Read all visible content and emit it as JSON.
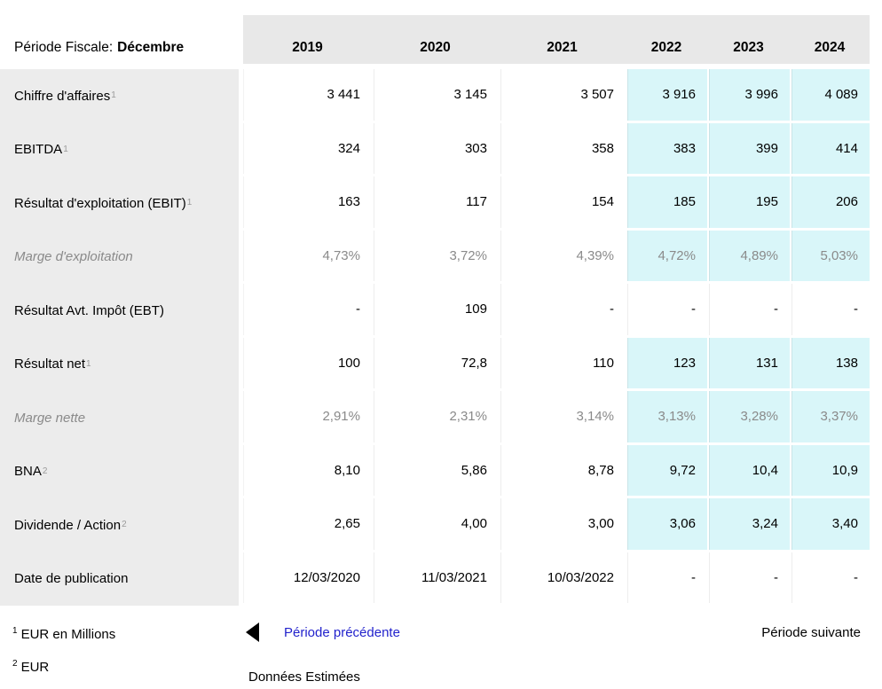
{
  "table": {
    "header": {
      "label_prefix": "Période Fiscale:",
      "label_value": "Décembre",
      "years": [
        "2019",
        "2020",
        "2021",
        "2022",
        "2023",
        "2024"
      ]
    },
    "rows": [
      {
        "label": "Chiffre d'affaires",
        "sup": "1",
        "muted": false,
        "estimated": true,
        "values": [
          "3 441",
          "3 145",
          "3 507",
          "3 916",
          "3 996",
          "4 089"
        ]
      },
      {
        "label": "EBITDA",
        "sup": "1",
        "muted": false,
        "estimated": true,
        "values": [
          "324",
          "303",
          "358",
          "383",
          "399",
          "414"
        ]
      },
      {
        "label": "Résultat d'exploitation (EBIT)",
        "sup": "1",
        "muted": false,
        "estimated": true,
        "values": [
          "163",
          "117",
          "154",
          "185",
          "195",
          "206"
        ]
      },
      {
        "label": "Marge d'exploitation",
        "sup": "",
        "muted": true,
        "estimated": true,
        "values": [
          "4,73%",
          "3,72%",
          "4,39%",
          "4,72%",
          "4,89%",
          "5,03%"
        ]
      },
      {
        "label": "Résultat Avt. Impôt (EBT)",
        "sup": "",
        "muted": false,
        "estimated": false,
        "values": [
          "-",
          "109",
          "-",
          "-",
          "-",
          "-"
        ]
      },
      {
        "label": "Résultat net",
        "sup": "1",
        "muted": false,
        "estimated": true,
        "values": [
          "100",
          "72,8",
          "110",
          "123",
          "131",
          "138"
        ]
      },
      {
        "label": "Marge nette",
        "sup": "",
        "muted": true,
        "estimated": true,
        "values": [
          "2,91%",
          "2,31%",
          "3,14%",
          "3,13%",
          "3,28%",
          "3,37%"
        ]
      },
      {
        "label": "BNA",
        "sup": "2",
        "muted": false,
        "estimated": true,
        "values": [
          "8,10",
          "5,86",
          "8,78",
          "9,72",
          "10,4",
          "10,9"
        ]
      },
      {
        "label": "Dividende / Action",
        "sup": "2",
        "muted": false,
        "estimated": true,
        "values": [
          "2,65",
          "4,00",
          "3,00",
          "3,06",
          "3,24",
          "3,40"
        ]
      },
      {
        "label": "Date de publication",
        "sup": "",
        "muted": false,
        "estimated": false,
        "values": [
          "12/03/2020",
          "11/03/2021",
          "10/03/2022",
          "-",
          "-",
          "-"
        ]
      }
    ]
  },
  "footnotes": [
    {
      "sup": "1",
      "text": "EUR en Millions"
    },
    {
      "sup": "2",
      "text": "EUR"
    }
  ],
  "nav": {
    "previous_label": "Période précédente",
    "next_label": "Période suivante",
    "estimated_label": "Données Estimées",
    "prev_icon": "left-triangle-icon"
  },
  "colors": {
    "estimate_bg": "#d9f6f9",
    "header_bg": "#e8e8e8",
    "label_column_bg": "#ececec",
    "link_blue": "#2222cc",
    "muted_text": "#8a8a8a"
  }
}
